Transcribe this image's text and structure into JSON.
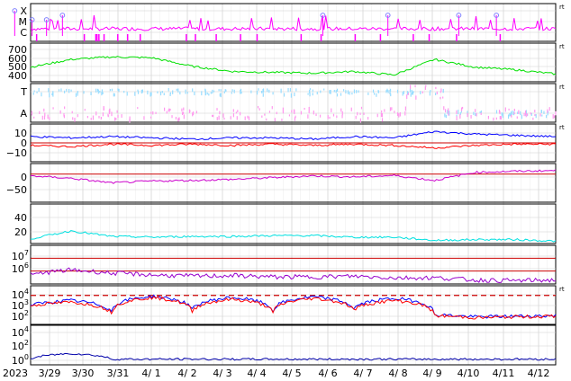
{
  "chart_data": [
    {
      "type": "line",
      "panel": "class-flags",
      "y_tick_labels": [
        "X",
        "M",
        "C"
      ],
      "series": [
        {
          "color": "#ff00ff",
          "style": "line"
        },
        {
          "color": "#8080ff",
          "style": "circle-markers"
        }
      ],
      "event_markers_x": [
        "3/28 02:00",
        "3/28 14:00",
        "3/29 00:00",
        "3/29 11:00",
        "4/5 23:00",
        "4/7 20:00",
        "4/9 21:00",
        "4/10 23:00"
      ],
      "right_marker": "rt"
    },
    {
      "type": "line",
      "panel": "speed",
      "y_tick_labels": [
        "700",
        "600",
        "500",
        "400"
      ],
      "ylim": [
        300,
        750
      ],
      "series": [
        {
          "color": "#00e000",
          "values": [
            470,
            560,
            590,
            580,
            480,
            420,
            410,
            400,
            420,
            380,
            560,
            470,
            440,
            390
          ]
        }
      ],
      "right_marker": "rt"
    },
    {
      "type": "line",
      "panel": "sector",
      "y_tick_labels": [
        "T",
        "A"
      ],
      "series": [
        {
          "color": "#99ddff",
          "values": [
            "T",
            "T",
            "T",
            "T",
            "T",
            "T",
            "T",
            "T",
            "T",
            "T",
            "T",
            "A",
            "A",
            "A"
          ]
        },
        {
          "color": "#ff99ee",
          "values": [
            "A",
            "A",
            "A",
            "A",
            "A",
            "A",
            "A",
            "A",
            "A",
            "A",
            "T",
            "A",
            "A",
            "A"
          ]
        }
      ],
      "right_marker": "rt"
    },
    {
      "type": "line",
      "panel": "field-components",
      "y_tick_labels": [
        "10",
        "0",
        "−10"
      ],
      "ylim": [
        -15,
        15
      ],
      "reference_line": 0,
      "series": [
        {
          "color": "#0000ff",
          "values": [
            5,
            4,
            5,
            4,
            3,
            4,
            4,
            3,
            5,
            4,
            9,
            7,
            6,
            5
          ]
        },
        {
          "color": "#ff0000",
          "values": [
            -2,
            -3,
            -1,
            -2,
            -1,
            -2,
            -1,
            -2,
            -1,
            -2,
            -4,
            -2,
            -1,
            -1
          ]
        }
      ],
      "right_marker": "rt"
    },
    {
      "type": "line",
      "panel": "index",
      "y_tick_labels": [
        "0",
        "−50"
      ],
      "ylim": [
        -80,
        30
      ],
      "reference_line": 0,
      "series": [
        {
          "color": "#cc00cc",
          "values": [
            -5,
            -12,
            -25,
            -20,
            -18,
            -15,
            -10,
            -5,
            -8,
            -4,
            -18,
            5,
            8,
            10
          ]
        }
      ]
    },
    {
      "type": "line",
      "panel": "density",
      "y_tick_labels": [
        "40",
        "20"
      ],
      "ylim": [
        0,
        50
      ],
      "series": [
        {
          "color": "#00e0e0",
          "values": [
            6,
            16,
            9,
            8,
            9,
            9,
            10,
            10,
            8,
            8,
            4,
            5,
            5,
            3
          ]
        }
      ]
    },
    {
      "type": "line",
      "panel": "temperature",
      "y_tick_labels": [
        "7",
        "6"
      ],
      "y_tick_base": "10",
      "log_scale": true,
      "ylim": [
        100000,
        100000000
      ],
      "reference_lines": [
        10000000,
        1000000
      ],
      "series": [
        {
          "color": "#9900cc",
          "values": [
            500000,
            1200000,
            700000,
            500000,
            400000,
            450000,
            350000,
            350000,
            400000,
            300000,
            300000,
            200000,
            180000,
            200000
          ]
        }
      ]
    },
    {
      "type": "line",
      "panel": "particle-flux",
      "y_tick_labels": [
        "4",
        "3",
        "2"
      ],
      "y_tick_base": "10",
      "log_scale": true,
      "ylim": [
        10,
        100000
      ],
      "threshold": 10000,
      "series": [
        {
          "color": "#0000ff",
          "values": [
            1000,
            3000,
            200,
            8000,
            300,
            6000,
            200,
            7000,
            400,
            5000,
            100,
            60,
            70,
            80
          ]
        },
        {
          "color": "#ff0000",
          "values": [
            900,
            2000,
            150,
            6000,
            200,
            4000,
            150,
            5000,
            300,
            3000,
            80,
            50,
            60,
            70
          ]
        }
      ],
      "right_marker": "rt"
    },
    {
      "type": "line",
      "panel": "proton-flux",
      "y_tick_labels": [
        "4",
        "2",
        "0"
      ],
      "y_tick_base": "10",
      "log_scale": true,
      "ylim": [
        0.01,
        100000
      ],
      "series": [
        {
          "color": "#0000aa",
          "values": [
            0.1,
            1,
            0.1,
            0.1,
            0.1,
            0.1,
            0.1,
            0.1,
            0.1,
            0.1,
            0.1,
            0.1,
            0.1,
            0.1
          ]
        }
      ]
    }
  ],
  "x_axis": {
    "year_label": "2023",
    "tick_labels": [
      "3/29",
      "3/30",
      "3/31",
      "4/ 1",
      "4/ 2",
      "4/ 3",
      "4/ 4",
      "4/ 5",
      "4/ 6",
      "4/ 7",
      "4/ 8",
      "4/ 9",
      "4/10",
      "4/11",
      "4/12"
    ],
    "grid": true
  }
}
